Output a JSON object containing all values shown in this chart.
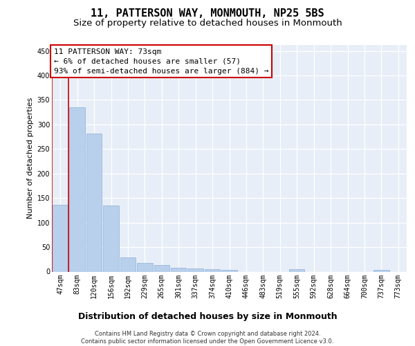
{
  "title": "11, PATTERSON WAY, MONMOUTH, NP25 5BS",
  "subtitle": "Size of property relative to detached houses in Monmouth",
  "xlabel": "Distribution of detached houses by size in Monmouth",
  "ylabel": "Number of detached properties",
  "categories": [
    "47sqm",
    "83sqm",
    "120sqm",
    "156sqm",
    "192sqm",
    "229sqm",
    "265sqm",
    "301sqm",
    "337sqm",
    "374sqm",
    "410sqm",
    "446sqm",
    "483sqm",
    "519sqm",
    "555sqm",
    "592sqm",
    "628sqm",
    "664sqm",
    "700sqm",
    "737sqm",
    "773sqm"
  ],
  "values": [
    136,
    335,
    281,
    135,
    29,
    17,
    13,
    8,
    6,
    5,
    4,
    0,
    0,
    0,
    5,
    0,
    0,
    0,
    0,
    4,
    0
  ],
  "bar_color": "#b8d0eb",
  "bar_edge_color": "#8db0d8",
  "highlight_line_color": "#cc0000",
  "annotation_line1": "11 PATTERSON WAY: 73sqm",
  "annotation_line2": "← 6% of detached houses are smaller (57)",
  "annotation_line3": "93% of semi-detached houses are larger (884) →",
  "annotation_box_facecolor": "#ffffff",
  "annotation_box_edgecolor": "#cc0000",
  "footer_line1": "Contains HM Land Registry data © Crown copyright and database right 2024.",
  "footer_line2": "Contains public sector information licensed under the Open Government Licence v3.0.",
  "ylim": [
    0,
    462
  ],
  "yticks": [
    0,
    50,
    100,
    150,
    200,
    250,
    300,
    350,
    400,
    450
  ],
  "bg_color": "#e8eef8",
  "title_fontsize": 11,
  "subtitle_fontsize": 9.5,
  "ylabel_fontsize": 8,
  "xlabel_fontsize": 9,
  "tick_fontsize": 7,
  "annotation_fontsize": 8,
  "footer_fontsize": 6
}
